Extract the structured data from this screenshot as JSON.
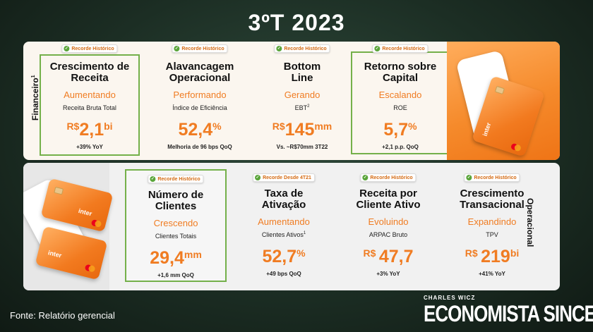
{
  "slide_title": "3ºT 2023",
  "top_section_label": "Financeiro",
  "top_section_label_sup": "1",
  "bottom_section_label": "Operacional",
  "colors": {
    "accent_orange": "#f07c22",
    "highlight_green": "#74b04a",
    "badge_check": "#5aa53a"
  },
  "financial": [
    {
      "badge": "Recorde Histórico",
      "heading_line1": "Crescimento de",
      "heading_line2": "Receita",
      "status": "Aumentando",
      "description": "Receita Bruta Total",
      "description_sup": "",
      "prefix": "R$",
      "value": "2,1",
      "suffix": "bi",
      "footnote": "+39% YoY",
      "highlighted": true
    },
    {
      "badge": "Recorde Histórico",
      "heading_line1": "Alavancagem",
      "heading_line2": "Operacional",
      "status": "Performando",
      "description": "Índice de Eficiência",
      "description_sup": "",
      "prefix": "",
      "value": "52,4",
      "suffix": "%",
      "footnote": "Melhoria de 96 bps QoQ",
      "highlighted": false
    },
    {
      "badge": "Recorde Histórico",
      "heading_line1": "Bottom",
      "heading_line2": "Line",
      "status": "Gerando",
      "description": "EBT",
      "description_sup": "2",
      "prefix": "R$",
      "value": "145",
      "suffix": "mm",
      "footnote": "Vs. ~R$70mm 3T22",
      "highlighted": false
    },
    {
      "badge": "Recorde Histórico",
      "heading_line1": "Retorno sobre",
      "heading_line2": "Capital",
      "status": "Escalando",
      "description": "ROE",
      "description_sup": "",
      "prefix": "",
      "value": "5,7",
      "suffix": "%",
      "footnote": "+2,1 p.p. QoQ",
      "highlighted": true
    }
  ],
  "operational": [
    {
      "badge": "Recorde Histórico",
      "heading_line1": "Número de",
      "heading_line2": "Clientes",
      "status": "Crescendo",
      "description": "Clientes Totais",
      "description_sup": "",
      "prefix": "",
      "value": "29,4",
      "suffix": "mm",
      "footnote": "+1,6 mm QoQ",
      "highlighted": true
    },
    {
      "badge": "Recorde Desde 4T21",
      "heading_line1": "Taxa de",
      "heading_line2": "Ativação",
      "status": "Aumentando",
      "description": "Clientes Ativos",
      "description_sup": "1",
      "prefix": "",
      "value": "52,7",
      "suffix": "%",
      "footnote": "+49 bps QoQ",
      "highlighted": false
    },
    {
      "badge": "Recorde Histórico",
      "heading_line1": "Receita por",
      "heading_line2": "Cliente Ativo",
      "status": "Evoluindo",
      "description": "ARPAC Bruto",
      "description_sup": "",
      "prefix": "R$",
      "value": "47,7",
      "suffix": "",
      "footnote": "+3% YoY",
      "highlighted": false
    },
    {
      "badge": "Recorde Histórico",
      "heading_line1": "Crescimento",
      "heading_line2": "Transacional",
      "status": "Expandindo",
      "description": "TPV",
      "description_sup": "",
      "prefix": "R$",
      "value": "219",
      "suffix": "bi",
      "footnote": "+41% YoY",
      "highlighted": false
    }
  ],
  "card_brand_text": "inter",
  "source_note": "Fonte: Relatório gerencial",
  "brand": {
    "small": "CHARLES WICZ",
    "large": "ECONOMISTA SINCERO"
  }
}
